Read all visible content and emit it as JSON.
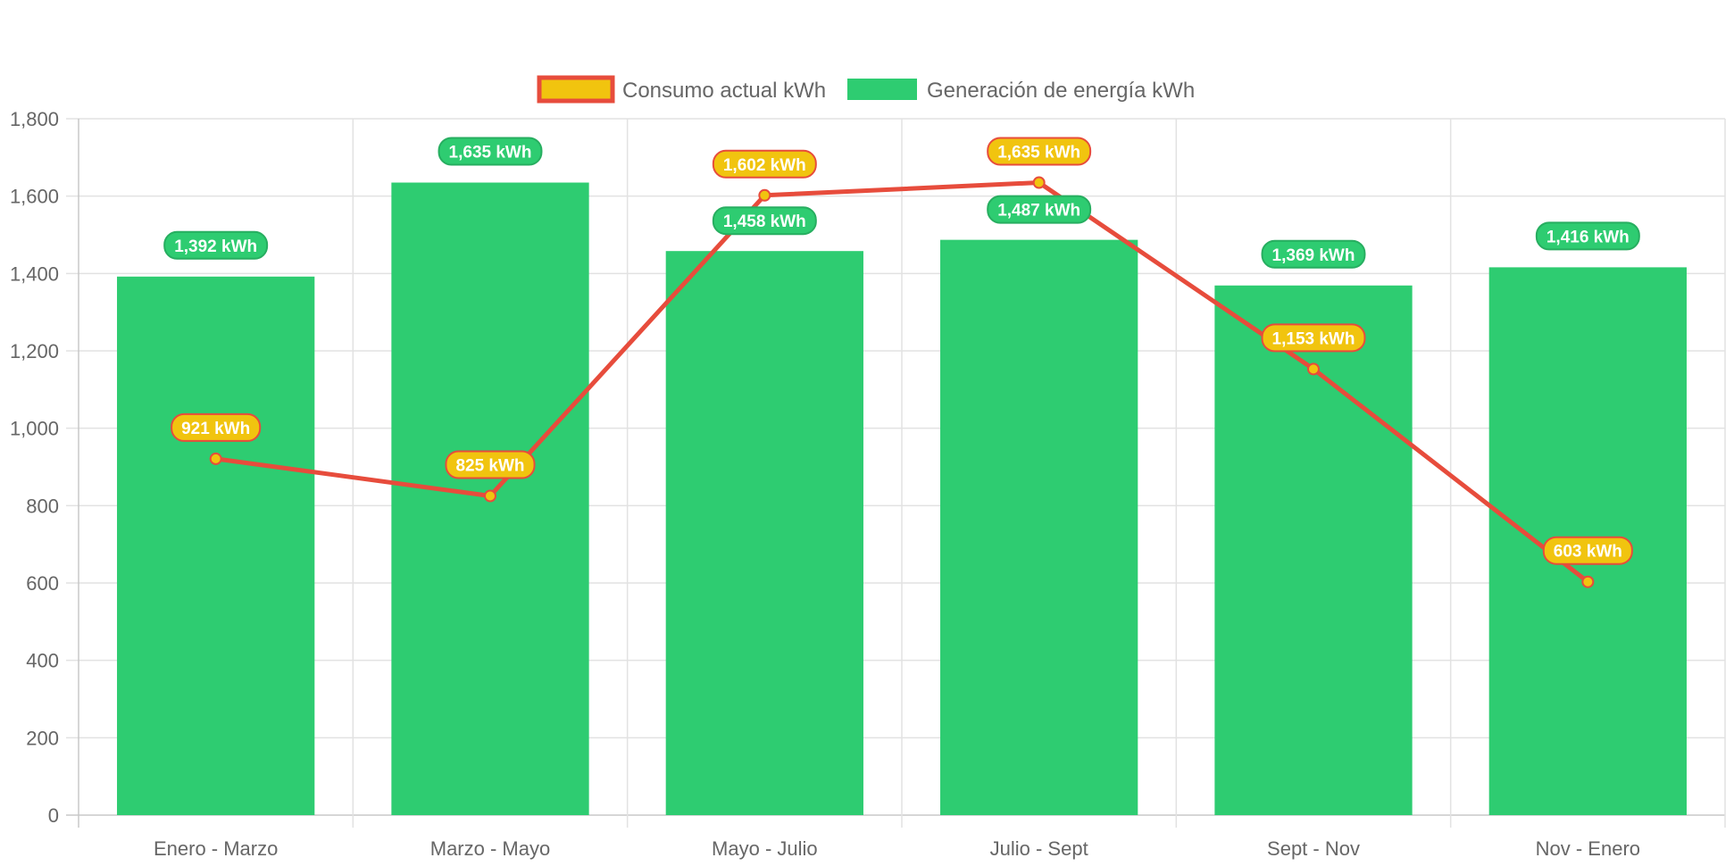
{
  "chart_data": {
    "type": "bar",
    "categories": [
      "Enero - Marzo",
      "Marzo - Mayo",
      "Mayo - Julio",
      "Julio - Sept",
      "Sept - Nov",
      "Nov - Enero"
    ],
    "series": [
      {
        "name": "Generación de energía kWh",
        "type": "bar",
        "color": "#2ecc71",
        "values": [
          1392,
          1635,
          1458,
          1487,
          1369,
          1416
        ],
        "labels": [
          "1,392 kWh",
          "1,635 kWh",
          "1,458 kWh",
          "1,487 kWh",
          "1,369 kWh",
          "1,416 kWh"
        ]
      },
      {
        "name": "Consumo actual kWh",
        "type": "line",
        "color": "#e74c3c",
        "fill_color": "#f1c40f",
        "values": [
          921,
          825,
          1602,
          1635,
          1153,
          603
        ],
        "labels": [
          "921 kWh",
          "825 kWh",
          "1,602 kWh",
          "1,635 kWh",
          "1,153 kWh",
          "603 kWh"
        ]
      }
    ],
    "legend_order": [
      "Consumo actual kWh",
      "Generación de energía kWh"
    ],
    "legend_position": "top",
    "ylim": [
      0,
      1800
    ],
    "yticks": [
      "0",
      "200",
      "400",
      "600",
      "800",
      "1,000",
      "1,200",
      "1,400",
      "1,600",
      "1,800"
    ],
    "grid": true,
    "title": "",
    "xlabel": "",
    "ylabel": ""
  }
}
